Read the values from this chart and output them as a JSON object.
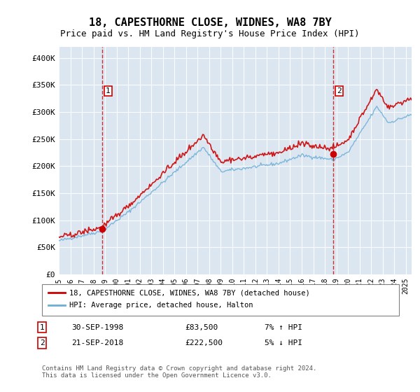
{
  "title": "18, CAPESTHORNE CLOSE, WIDNES, WA8 7BY",
  "subtitle": "Price paid vs. HM Land Registry's House Price Index (HPI)",
  "legend_line1": "18, CAPESTHORNE CLOSE, WIDNES, WA8 7BY (detached house)",
  "legend_line2": "HPI: Average price, detached house, Halton",
  "annotation1_label": "1",
  "annotation1_date": "30-SEP-1998",
  "annotation1_price": "£83,500",
  "annotation1_hpi": "7% ↑ HPI",
  "annotation2_label": "2",
  "annotation2_date": "21-SEP-2018",
  "annotation2_price": "£222,500",
  "annotation2_hpi": "5% ↓ HPI",
  "footnote": "Contains HM Land Registry data © Crown copyright and database right 2024.\nThis data is licensed under the Open Government Licence v3.0.",
  "ylabel": "",
  "background_color": "#dce6f1",
  "plot_bg": "#dce6f1",
  "line1_color": "#cc0000",
  "line2_color": "#6baed6",
  "vline_color": "#cc0000",
  "marker1_x": 1998.75,
  "marker1_y": 83500,
  "marker2_x": 2018.72,
  "marker2_y": 222500,
  "ylim": [
    0,
    420000
  ],
  "xlim_start": 1995.0,
  "xlim_end": 2025.5
}
